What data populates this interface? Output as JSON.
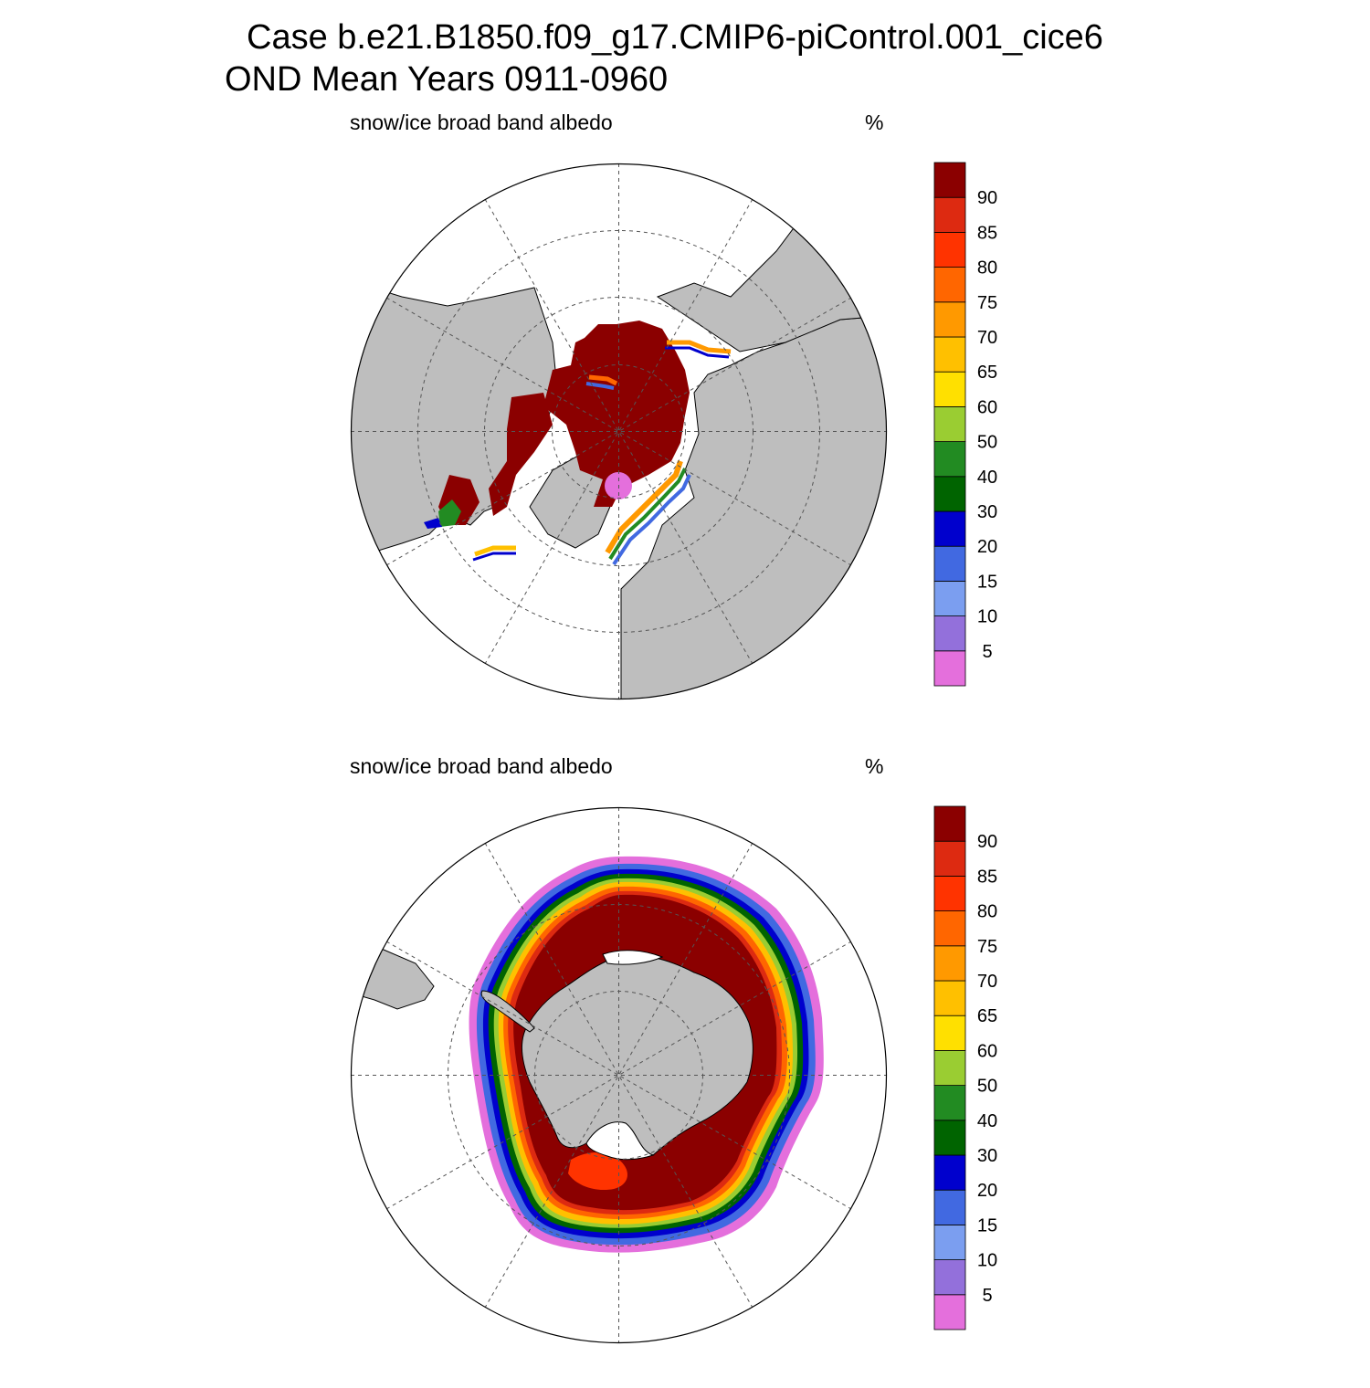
{
  "title": {
    "line1": "Case b.e21.B1850.f09_g17.CMIP6-piControl.001_cice6",
    "line2": "OND Mean   Years 0911-0960"
  },
  "panels": [
    {
      "id": "nh",
      "hemisphere": "north",
      "label_left": "snow/ice broad band albedo",
      "label_right": "%"
    },
    {
      "id": "sh",
      "hemisphere": "south",
      "label_left": "snow/ice broad band albedo",
      "label_right": "%"
    }
  ],
  "colorbar": {
    "labels": [
      "5",
      "10",
      "15",
      "20",
      "30",
      "40",
      "50",
      "60",
      "65",
      "70",
      "75",
      "80",
      "85",
      "90"
    ],
    "colors": [
      "#e46fdc",
      "#9370db",
      "#7b9ef0",
      "#4169e1",
      "#0000cd",
      "#006400",
      "#228b22",
      "#9acd32",
      "#ffe000",
      "#ffc000",
      "#ff9900",
      "#ff6600",
      "#ff3300",
      "#dd2a11",
      "#8b0000"
    ]
  },
  "map_colors": {
    "land": "#bebebe",
    "ocean": "#ffffff",
    "grid": "#555555"
  },
  "chart_data": [
    {
      "type": "heatmap",
      "projection": "north polar stereographic",
      "variable": "snow/ice broad band albedo",
      "units": "%",
      "levels": [
        5,
        10,
        15,
        20,
        30,
        40,
        50,
        60,
        65,
        70,
        75,
        80,
        85,
        90
      ],
      "grid": true,
      "legend": "right"
    },
    {
      "type": "heatmap",
      "projection": "south polar stereographic",
      "variable": "snow/ice broad band albedo",
      "units": "%",
      "levels": [
        5,
        10,
        15,
        20,
        30,
        40,
        50,
        60,
        65,
        70,
        75,
        80,
        85,
        90
      ],
      "grid": true,
      "legend": "right"
    }
  ]
}
